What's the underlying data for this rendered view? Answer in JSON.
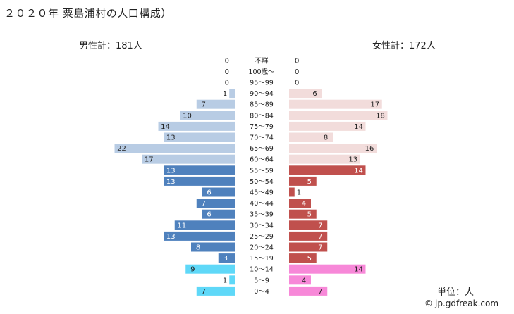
{
  "title": "２０２０年 粟島浦村の人口構成）",
  "male_total_label": "男性計：181人",
  "female_total_label": "女性計：172人",
  "unit_label": "単位：人",
  "footer": {
    "text": "jp.gdfreak.com"
  },
  "chart_data": {
    "type": "bar",
    "orientation": "horizontal-population-pyramid",
    "title": "２０２０年 粟島浦村の人口構成）",
    "categories": [
      "不詳",
      "100歳～",
      "95～99",
      "90～94",
      "85～89",
      "80～84",
      "75～79",
      "70～74",
      "65～69",
      "60～64",
      "55～59",
      "50～54",
      "45～49",
      "40～44",
      "35～39",
      "30～34",
      "25～29",
      "20～24",
      "15～19",
      "10～14",
      "5～9",
      "0～4"
    ],
    "series": [
      {
        "name": "男性",
        "values": [
          0,
          0,
          0,
          1,
          7,
          10,
          14,
          13,
          22,
          17,
          13,
          13,
          6,
          7,
          6,
          11,
          13,
          8,
          3,
          9,
          1,
          7
        ]
      },
      {
        "name": "女性",
        "values": [
          0,
          0,
          0,
          6,
          17,
          18,
          14,
          8,
          16,
          13,
          14,
          5,
          1,
          4,
          5,
          7,
          7,
          7,
          5,
          14,
          4,
          7
        ]
      }
    ],
    "xlim": [
      0,
      23
    ],
    "colors": {
      "male_elderly": "#b8cce4",
      "male_working": "#4f81bd",
      "male_young": "#5fd8f8",
      "female_elderly": "#f2dcdb",
      "female_working": "#c0504d",
      "female_young": "#f788d8"
    }
  }
}
